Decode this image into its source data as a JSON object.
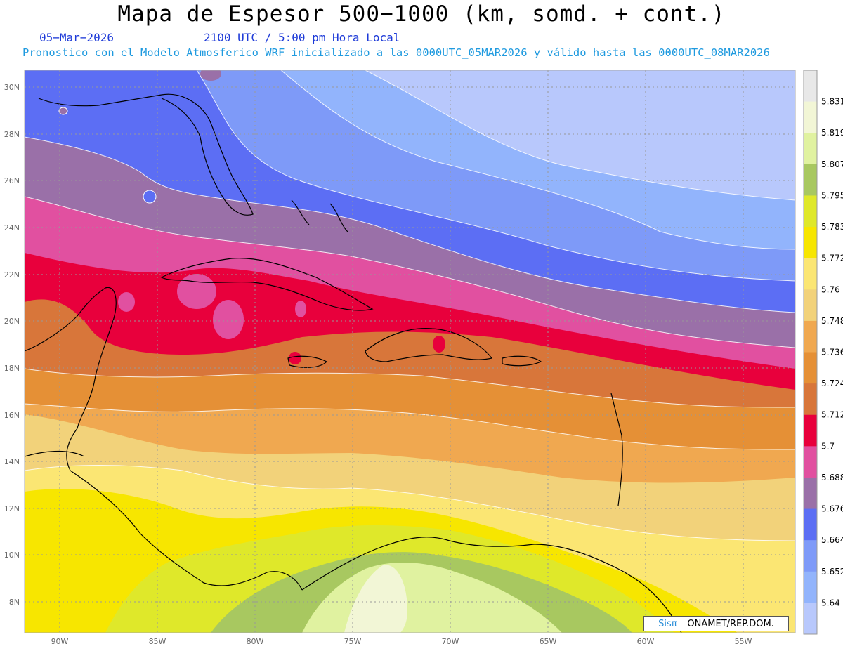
{
  "header": {
    "title": "Mapa de Espesor 500−1000 (km, somd. + cont.)",
    "date": "05−Mar−2026",
    "time": "2100 UTC / 5:00 pm Hora Local",
    "forecast": "Pronostico con el Modelo Atmosferico WRF inicializado a las 0000UTC_05MAR2026 y válido hasta las  0000UTC_08MAR2026"
  },
  "map": {
    "lat_labels": [
      "30N",
      "28N",
      "26N",
      "24N",
      "22N",
      "20N",
      "18N",
      "16N",
      "14N",
      "12N",
      "10N",
      "8N"
    ],
    "lon_labels": [
      "90W",
      "85W",
      "80W",
      "75W",
      "70W",
      "65W",
      "60W",
      "55W"
    ]
  },
  "colorbar": {
    "levels": [
      "5.831",
      "5.819",
      "5.807",
      "5.795",
      "5.783",
      "5.772",
      "5.76",
      "5.748",
      "5.736",
      "5.724",
      "5.712",
      "5.7",
      "5.688",
      "5.676",
      "5.664",
      "5.652",
      "5.64"
    ],
    "colors": [
      "#e8e8e8",
      "#f2f6d6",
      "#e0f2a0",
      "#a8c860",
      "#dfe82a",
      "#f7e600",
      "#fbe673",
      "#f2d27a",
      "#f0a850",
      "#e59036",
      "#d8763a",
      "#e8003c",
      "#e150a0",
      "#9a70a8",
      "#5c6ef4",
      "#7e9af8",
      "#92b4fc",
      "#b8c8fc"
    ]
  },
  "credit": {
    "brand": "Sisπ",
    "text": "– ONAMET/REP.DOM."
  }
}
